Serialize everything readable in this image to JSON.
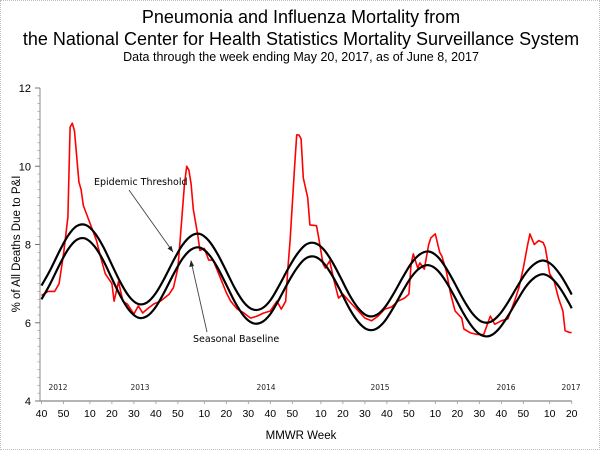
{
  "chart_data": {
    "type": "line",
    "title": "Pneumonia and Influenza Mortality from",
    "title_line2": "the National Center for Health Statistics Mortality Surveillance System",
    "subtitle": "Data through the week ending May 20, 2017, as of June 8, 2017",
    "xlabel": "MMWR Week",
    "ylabel": "% of All Deaths Due to P&I",
    "ylim": [
      4,
      12
    ],
    "y_ticks": [
      4,
      6,
      8,
      10,
      12
    ],
    "xlim": [
      "2012-W40",
      "2017-W20"
    ],
    "x_ticks": [
      "2012-W40",
      "2012-W50",
      "2013-W10",
      "2013-W20",
      "2013-W30",
      "2013-W40",
      "2013-W50",
      "2014-W10",
      "2014-W20",
      "2014-W30",
      "2014-W40",
      "2014-W50",
      "2015-W10",
      "2015-W20",
      "2015-W30",
      "2015-W40",
      "2015-W50",
      "2016-W10",
      "2016-W20",
      "2016-W30",
      "2016-W40",
      "2016-W50",
      "2017-W10",
      "2017-W20"
    ],
    "x_tick_labels": [
      "40",
      "50",
      "10",
      "20",
      "30",
      "40",
      "50",
      "10",
      "20",
      "30",
      "40",
      "50",
      "10",
      "20",
      "30",
      "40",
      "50",
      "10",
      "20",
      "30",
      "40",
      "50",
      "10",
      "20"
    ],
    "year_labels": [
      "2012",
      "2013",
      "2014",
      "2015",
      "2016",
      "2017"
    ],
    "grid": false,
    "annotations": [
      {
        "text": "Epidemic Threshold",
        "points_to": "threshold"
      },
      {
        "text": "Seasonal Baseline",
        "points_to": "baseline"
      }
    ],
    "series": [
      {
        "key": "observed",
        "color": "#ff0000",
        "points": [
          [
            "2012-W40",
            6.7
          ],
          [
            "2012-W43",
            6.8
          ],
          [
            "2012-W46",
            6.8
          ],
          [
            "2012-W48",
            7.0
          ],
          [
            "2012-W50",
            7.75
          ],
          [
            "2012-W52",
            8.7
          ],
          [
            "2013-W01",
            11.0
          ],
          [
            "2013-W02",
            11.1
          ],
          [
            "2013-W03",
            10.9
          ],
          [
            "2013-W05",
            9.6
          ],
          [
            "2013-W06",
            9.4
          ],
          [
            "2013-W07",
            9.0
          ],
          [
            "2013-W09",
            8.7
          ],
          [
            "2013-W11",
            8.4
          ],
          [
            "2013-W13",
            8.1
          ],
          [
            "2013-W15",
            7.65
          ],
          [
            "2013-W17",
            7.25
          ],
          [
            "2013-W20",
            7.0
          ],
          [
            "2013-W21",
            6.55
          ],
          [
            "2013-W23",
            7.05
          ],
          [
            "2013-W25",
            6.55
          ],
          [
            "2013-W27",
            6.48
          ],
          [
            "2013-W30",
            6.22
          ],
          [
            "2013-W32",
            6.43
          ],
          [
            "2013-W34",
            6.25
          ],
          [
            "2013-W36",
            6.35
          ],
          [
            "2013-W39",
            6.48
          ],
          [
            "2013-W42",
            6.55
          ],
          [
            "2013-W46",
            6.73
          ],
          [
            "2013-W48",
            6.9
          ],
          [
            "2013-W50",
            7.4
          ],
          [
            "2013-W51",
            8.1
          ],
          [
            "2014-W01",
            9.55
          ],
          [
            "2014-W02",
            10.0
          ],
          [
            "2014-W03",
            9.9
          ],
          [
            "2014-W04",
            9.55
          ],
          [
            "2014-W05",
            8.9
          ],
          [
            "2014-W07",
            8.25
          ],
          [
            "2014-W08",
            7.85
          ],
          [
            "2014-W10",
            7.9
          ],
          [
            "2014-W12",
            7.6
          ],
          [
            "2014-W14",
            7.6
          ],
          [
            "2014-W18",
            7.05
          ],
          [
            "2014-W20",
            6.77
          ],
          [
            "2014-W22",
            6.55
          ],
          [
            "2014-W25",
            6.35
          ],
          [
            "2014-W28",
            6.25
          ],
          [
            "2014-W31",
            6.12
          ],
          [
            "2014-W34",
            6.17
          ],
          [
            "2014-W37",
            6.25
          ],
          [
            "2014-W40",
            6.3
          ],
          [
            "2014-W43",
            6.55
          ],
          [
            "2014-W45",
            6.35
          ],
          [
            "2014-W47",
            6.55
          ],
          [
            "2014-W48",
            7.4
          ],
          [
            "2014-W49",
            8.1
          ],
          [
            "2014-W51",
            9.95
          ],
          [
            "2014-W52",
            10.8
          ],
          [
            "2014-W53",
            10.8
          ],
          [
            "2015-W01",
            10.7
          ],
          [
            "2015-W02",
            9.7
          ],
          [
            "2015-W04",
            9.2
          ],
          [
            "2015-W05",
            8.5
          ],
          [
            "2015-W08",
            8.48
          ],
          [
            "2015-W09",
            8.17
          ],
          [
            "2015-W11",
            7.5
          ],
          [
            "2015-W12",
            7.4
          ],
          [
            "2015-W14",
            7.58
          ],
          [
            "2015-W16",
            7.07
          ],
          [
            "2015-W18",
            6.63
          ],
          [
            "2015-W20",
            6.73
          ],
          [
            "2015-W24",
            6.48
          ],
          [
            "2015-W27",
            6.3
          ],
          [
            "2015-W30",
            6.12
          ],
          [
            "2015-W33",
            6.05
          ],
          [
            "2015-W36",
            6.17
          ],
          [
            "2015-W39",
            6.35
          ],
          [
            "2015-W42",
            6.4
          ],
          [
            "2015-W45",
            6.55
          ],
          [
            "2015-W48",
            6.63
          ],
          [
            "2015-W50",
            6.73
          ],
          [
            "2015-W51",
            7.5
          ],
          [
            "2015-W52",
            7.76
          ],
          [
            "2016-W02",
            7.4
          ],
          [
            "2016-W03",
            7.53
          ],
          [
            "2016-W05",
            7.37
          ],
          [
            "2016-W07",
            8.0
          ],
          [
            "2016-W08",
            8.17
          ],
          [
            "2016-W10",
            8.27
          ],
          [
            "2016-W12",
            7.8
          ],
          [
            "2016-W13",
            7.7
          ],
          [
            "2016-W15",
            7.32
          ],
          [
            "2016-W17",
            6.73
          ],
          [
            "2016-W19",
            6.3
          ],
          [
            "2016-W22",
            6.12
          ],
          [
            "2016-W23",
            5.84
          ],
          [
            "2016-W26",
            5.74
          ],
          [
            "2016-W29",
            5.7
          ],
          [
            "2016-W32",
            5.7
          ],
          [
            "2016-W35",
            6.17
          ],
          [
            "2016-W37",
            5.96
          ],
          [
            "2016-W40",
            6.05
          ],
          [
            "2016-W43",
            6.1
          ],
          [
            "2016-W46",
            6.55
          ],
          [
            "2016-W48",
            6.89
          ],
          [
            "2016-W50",
            7.4
          ],
          [
            "2016-W52",
            8.0
          ],
          [
            "2017-W01",
            8.27
          ],
          [
            "2017-W03",
            8.0
          ],
          [
            "2017-W05",
            8.1
          ],
          [
            "2017-W07",
            8.05
          ],
          [
            "2017-W08",
            7.92
          ],
          [
            "2017-W10",
            7.25
          ],
          [
            "2017-W12",
            7.07
          ],
          [
            "2017-W14",
            6.63
          ],
          [
            "2017-W16",
            6.3
          ],
          [
            "2017-W17",
            5.8
          ],
          [
            "2017-W19",
            5.75
          ],
          [
            "2017-W20",
            5.75
          ]
        ]
      },
      {
        "key": "threshold",
        "color": "#000000",
        "points": [
          [
            "2012-W40",
            6.95
          ],
          [
            "2012-W44",
            7.35
          ],
          [
            "2012-W48",
            7.81
          ],
          [
            "2012-W52",
            8.22
          ],
          [
            "2013-W04",
            8.47
          ],
          [
            "2013-W08",
            8.5
          ],
          [
            "2013-W12",
            8.31
          ],
          [
            "2013-W16",
            7.95
          ],
          [
            "2013-W20",
            7.48
          ],
          [
            "2013-W24",
            7.02
          ],
          [
            "2013-W28",
            6.66
          ],
          [
            "2013-W32",
            6.48
          ],
          [
            "2013-W36",
            6.52
          ],
          [
            "2013-W40",
            6.76
          ],
          [
            "2013-W44",
            7.15
          ],
          [
            "2013-W48",
            7.59
          ],
          [
            "2013-W52",
            7.98
          ],
          [
            "2014-W04",
            8.22
          ],
          [
            "2014-W08",
            8.27
          ],
          [
            "2014-W12",
            8.1
          ],
          [
            "2014-W16",
            7.76
          ],
          [
            "2014-W20",
            7.32
          ],
          [
            "2014-W24",
            6.87
          ],
          [
            "2014-W28",
            6.52
          ],
          [
            "2014-W32",
            6.34
          ],
          [
            "2014-W36",
            6.36
          ],
          [
            "2014-W40",
            6.57
          ],
          [
            "2014-W44",
            6.95
          ],
          [
            "2014-W48",
            7.37
          ],
          [
            "2014-W52",
            7.74
          ],
          [
            "2015-W03",
            7.99
          ],
          [
            "2015-W07",
            8.04
          ],
          [
            "2015-W11",
            7.89
          ],
          [
            "2015-W15",
            7.57
          ],
          [
            "2015-W19",
            7.15
          ],
          [
            "2015-W23",
            6.71
          ],
          [
            "2015-W27",
            6.37
          ],
          [
            "2015-W31",
            6.18
          ],
          [
            "2015-W35",
            6.19
          ],
          [
            "2015-W39",
            6.39
          ],
          [
            "2015-W43",
            6.74
          ],
          [
            "2015-W47",
            7.14
          ],
          [
            "2015-W51",
            7.51
          ],
          [
            "2016-W03",
            7.75
          ],
          [
            "2016-W07",
            7.82
          ],
          [
            "2016-W11",
            7.69
          ],
          [
            "2016-W15",
            7.39
          ],
          [
            "2016-W19",
            6.99
          ],
          [
            "2016-W23",
            6.57
          ],
          [
            "2016-W27",
            6.23
          ],
          [
            "2016-W31",
            6.03
          ],
          [
            "2016-W35",
            6.02
          ],
          [
            "2016-W39",
            6.2
          ],
          [
            "2016-W43",
            6.52
          ],
          [
            "2016-W47",
            6.9
          ],
          [
            "2016-W51",
            7.26
          ],
          [
            "2017-W03",
            7.5
          ],
          [
            "2017-W07",
            7.59
          ],
          [
            "2017-W11",
            7.48
          ],
          [
            "2017-W15",
            7.21
          ],
          [
            "2017-W19",
            6.83
          ],
          [
            "2017-W20",
            6.72
          ]
        ]
      },
      {
        "key": "baseline",
        "color": "#000000",
        "points": [
          [
            "2012-W40",
            6.6
          ],
          [
            "2012-W44",
            7.0
          ],
          [
            "2012-W48",
            7.46
          ],
          [
            "2012-W52",
            7.87
          ],
          [
            "2013-W04",
            8.12
          ],
          [
            "2013-W08",
            8.15
          ],
          [
            "2013-W12",
            7.96
          ],
          [
            "2013-W16",
            7.6
          ],
          [
            "2013-W20",
            7.13
          ],
          [
            "2013-W24",
            6.67
          ],
          [
            "2013-W28",
            6.31
          ],
          [
            "2013-W32",
            6.13
          ],
          [
            "2013-W36",
            6.17
          ],
          [
            "2013-W40",
            6.41
          ],
          [
            "2013-W44",
            6.8
          ],
          [
            "2013-W48",
            7.24
          ],
          [
            "2013-W52",
            7.63
          ],
          [
            "2014-W04",
            7.87
          ],
          [
            "2014-W08",
            7.92
          ],
          [
            "2014-W12",
            7.75
          ],
          [
            "2014-W16",
            7.41
          ],
          [
            "2014-W20",
            6.97
          ],
          [
            "2014-W24",
            6.52
          ],
          [
            "2014-W28",
            6.17
          ],
          [
            "2014-W32",
            5.99
          ],
          [
            "2014-W36",
            6.01
          ],
          [
            "2014-W40",
            6.22
          ],
          [
            "2014-W44",
            6.6
          ],
          [
            "2014-W48",
            7.02
          ],
          [
            "2014-W52",
            7.39
          ],
          [
            "2015-W03",
            7.64
          ],
          [
            "2015-W07",
            7.69
          ],
          [
            "2015-W11",
            7.54
          ],
          [
            "2015-W15",
            7.22
          ],
          [
            "2015-W19",
            6.8
          ],
          [
            "2015-W23",
            6.36
          ],
          [
            "2015-W27",
            6.02
          ],
          [
            "2015-W31",
            5.83
          ],
          [
            "2015-W35",
            5.84
          ],
          [
            "2015-W39",
            6.04
          ],
          [
            "2015-W43",
            6.39
          ],
          [
            "2015-W47",
            6.79
          ],
          [
            "2015-W51",
            7.16
          ],
          [
            "2016-W03",
            7.4
          ],
          [
            "2016-W07",
            7.47
          ],
          [
            "2016-W11",
            7.34
          ],
          [
            "2016-W15",
            7.04
          ],
          [
            "2016-W19",
            6.64
          ],
          [
            "2016-W23",
            6.22
          ],
          [
            "2016-W27",
            5.88
          ],
          [
            "2016-W31",
            5.68
          ],
          [
            "2016-W35",
            5.67
          ],
          [
            "2016-W39",
            5.85
          ],
          [
            "2016-W43",
            6.17
          ],
          [
            "2016-W47",
            6.55
          ],
          [
            "2016-W51",
            6.91
          ],
          [
            "2017-W03",
            7.15
          ],
          [
            "2017-W07",
            7.24
          ],
          [
            "2017-W11",
            7.13
          ],
          [
            "2017-W15",
            6.86
          ],
          [
            "2017-W19",
            6.48
          ],
          [
            "2017-W20",
            6.37
          ]
        ]
      }
    ]
  }
}
